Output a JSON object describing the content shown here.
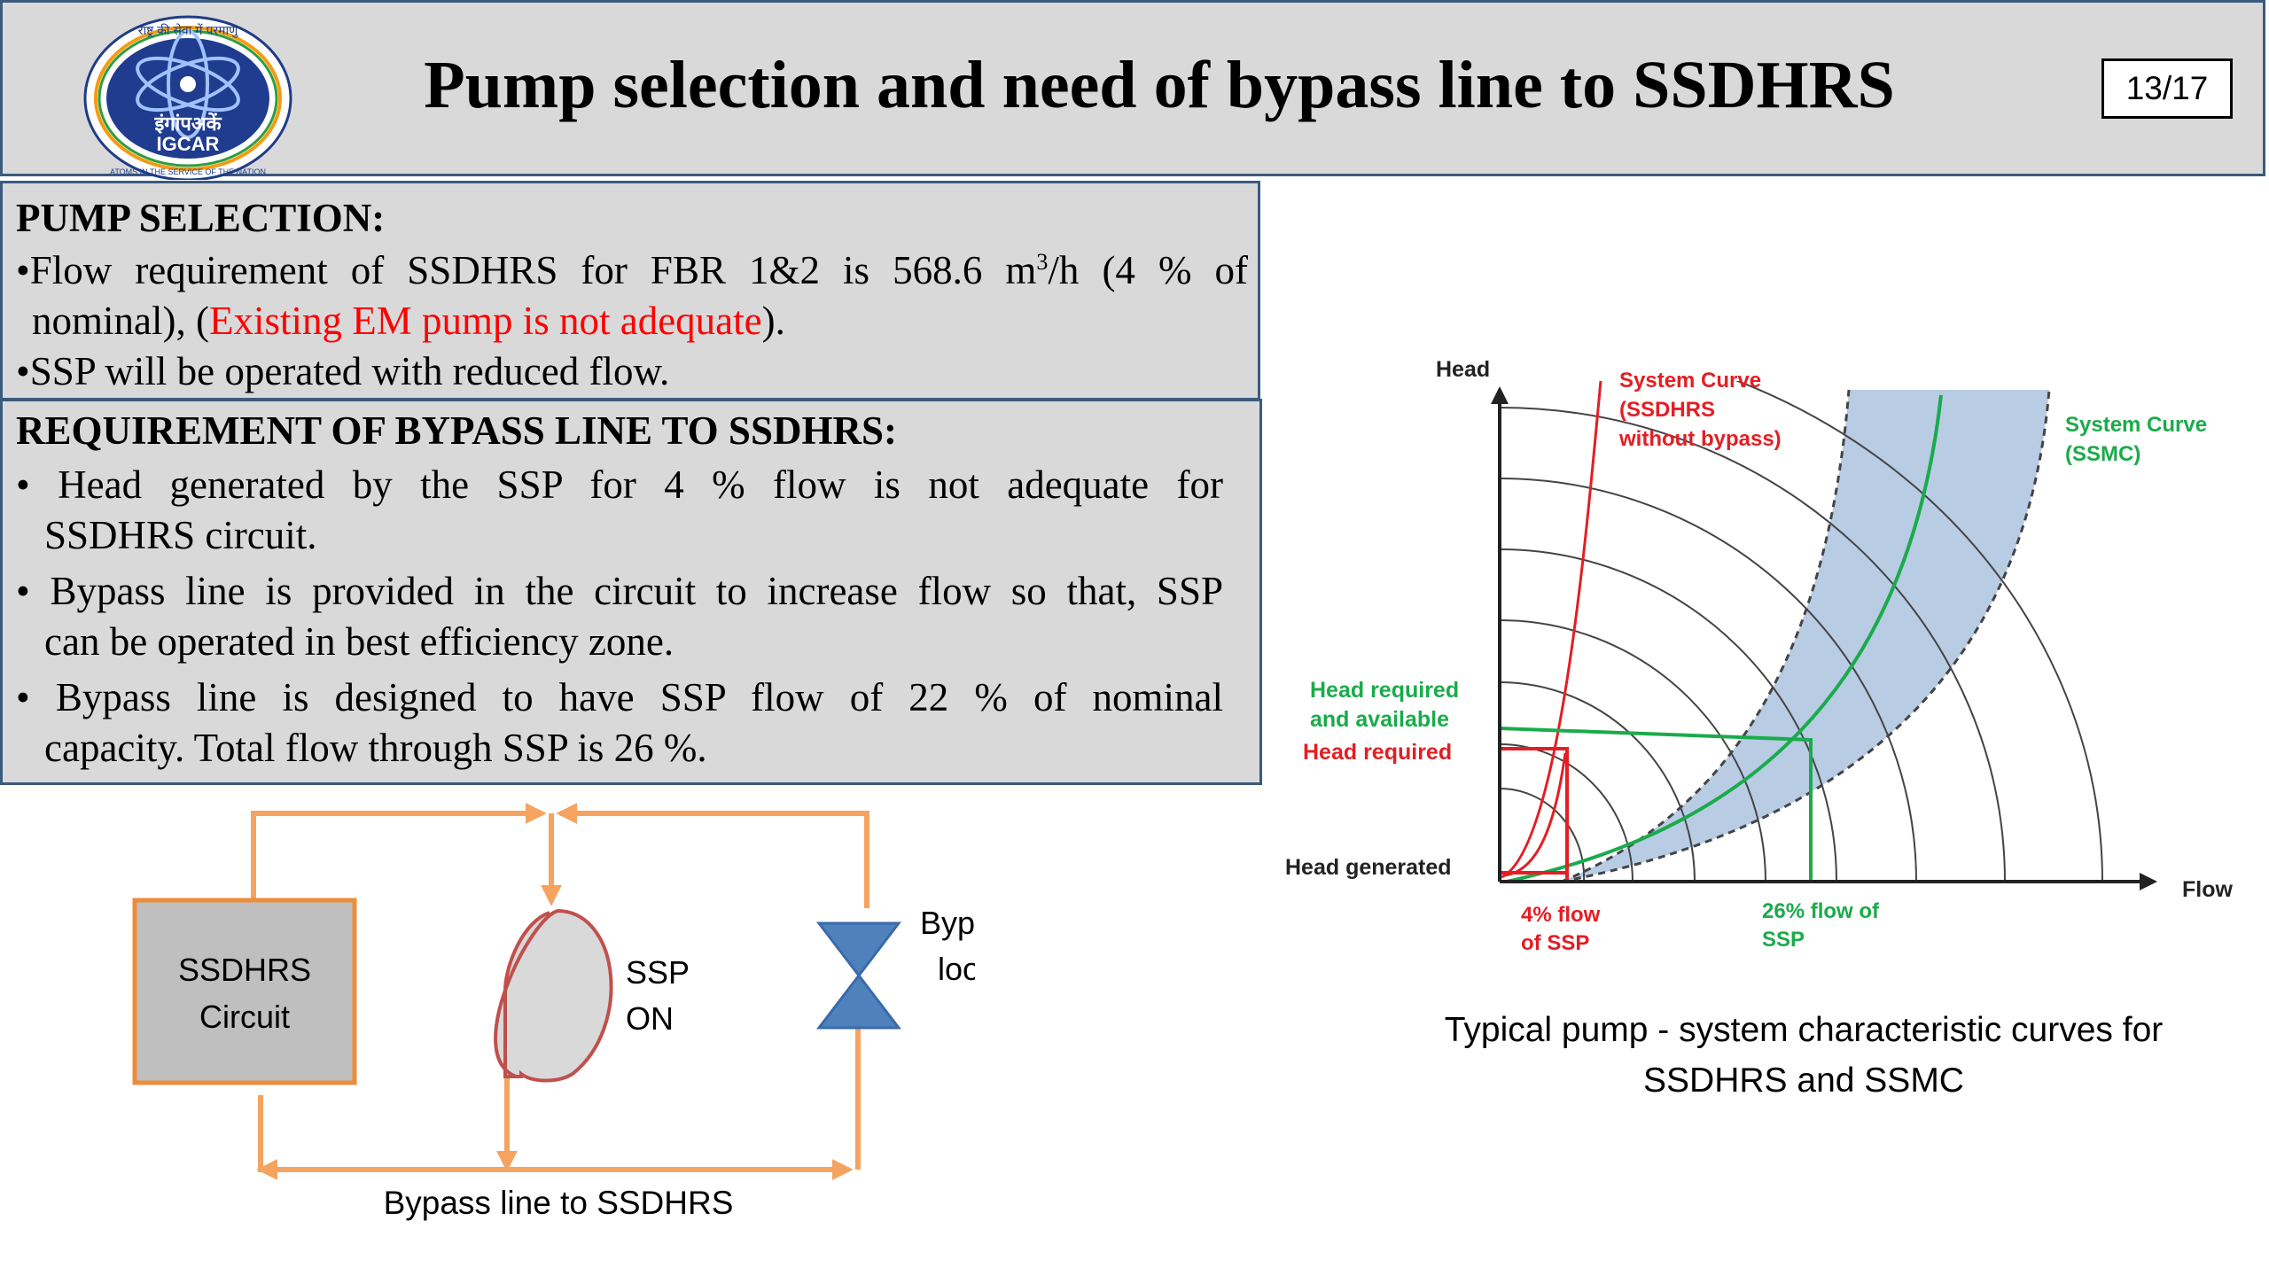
{
  "header": {
    "logo_text": [
      "राष्ट्र की सेवा में परमाणु",
      "इंगांपअकें",
      "IGCAR",
      "ATOMS IN THE SERVICE OF THE NATION"
    ],
    "title": "Pump selection and need of bypass line to SSDHRS",
    "page_number": "13/17"
  },
  "pump_selection": {
    "heading": "PUMP SELECTION:",
    "b1_part1": "•Flow requirement of SSDHRS for FBR 1&2 is 568.6 m",
    "b1_sup": "3",
    "b1_part2": "/h (4 % of",
    "b1_line2_a": "nominal), (",
    "b1_line2_red": "Existing EM pump is not adequate",
    "b1_line2_b": ").",
    "b2": "•SSP  will be operated with reduced flow."
  },
  "bypass_requirement": {
    "heading": "REQUIREMENT OF BYPASS LINE TO SSDHRS:",
    "b1_l1": "• Head generated by the SSP for 4 % flow is not adequate for",
    "b1_l2": "SSDHRS circuit.",
    "b2_l1": "• Bypass line is provided in the circuit to increase flow so that, SSP",
    "b2_l2": "can be operated in best efficiency zone.",
    "b3_l1": "• Bypass line is designed to have SSP flow of 22 % of nominal",
    "b3_l2": "capacity. Total flow through SSP is 26 %."
  },
  "circuit_diagram": {
    "circuit_box_l1": "SSDHRS",
    "circuit_box_l2": "Circuit",
    "pump_l1": "SSP",
    "pump_l2": "ON",
    "valve_l1": "Bypass",
    "valve_l2": "loop",
    "caption": "Bypass line to SSDHRS",
    "colors": {
      "pipe": "#f4a460",
      "box_fill": "#bfbfbf",
      "box_border": "#ed8c3a",
      "pump_stroke": "#c0504d",
      "pump_fill": "#d9d9d9",
      "valve_fill": "#4f81bd"
    }
  },
  "pump_chart": {
    "y_axis_label": "Head",
    "x_axis_label": "Flow",
    "system_curve_ssdhrs_l1": "System Curve",
    "system_curve_ssdhrs_l2": "(SSDHRS",
    "system_curve_ssdhrs_l3": "without bypass)",
    "system_curve_ssmc_l1": "System Curve",
    "system_curve_ssmc_l2": "(SSMC)",
    "head_req_avail_l1": "Head required",
    "head_req_avail_l2": "and available",
    "head_required": "Head required",
    "head_generated": "Head generated",
    "flow_4_l1": "4% flow",
    "flow_4_l2": "of SSP",
    "flow_26_l1": "26% flow of",
    "flow_26_l2": "SSP",
    "caption_l1": "Typical pump - system characteristic curves for",
    "caption_l2": "SSDHRS and SSMC",
    "colors": {
      "red": "#e31e24",
      "green": "#1aab4b",
      "band": "#b8cce4",
      "dark": "#222222"
    }
  }
}
